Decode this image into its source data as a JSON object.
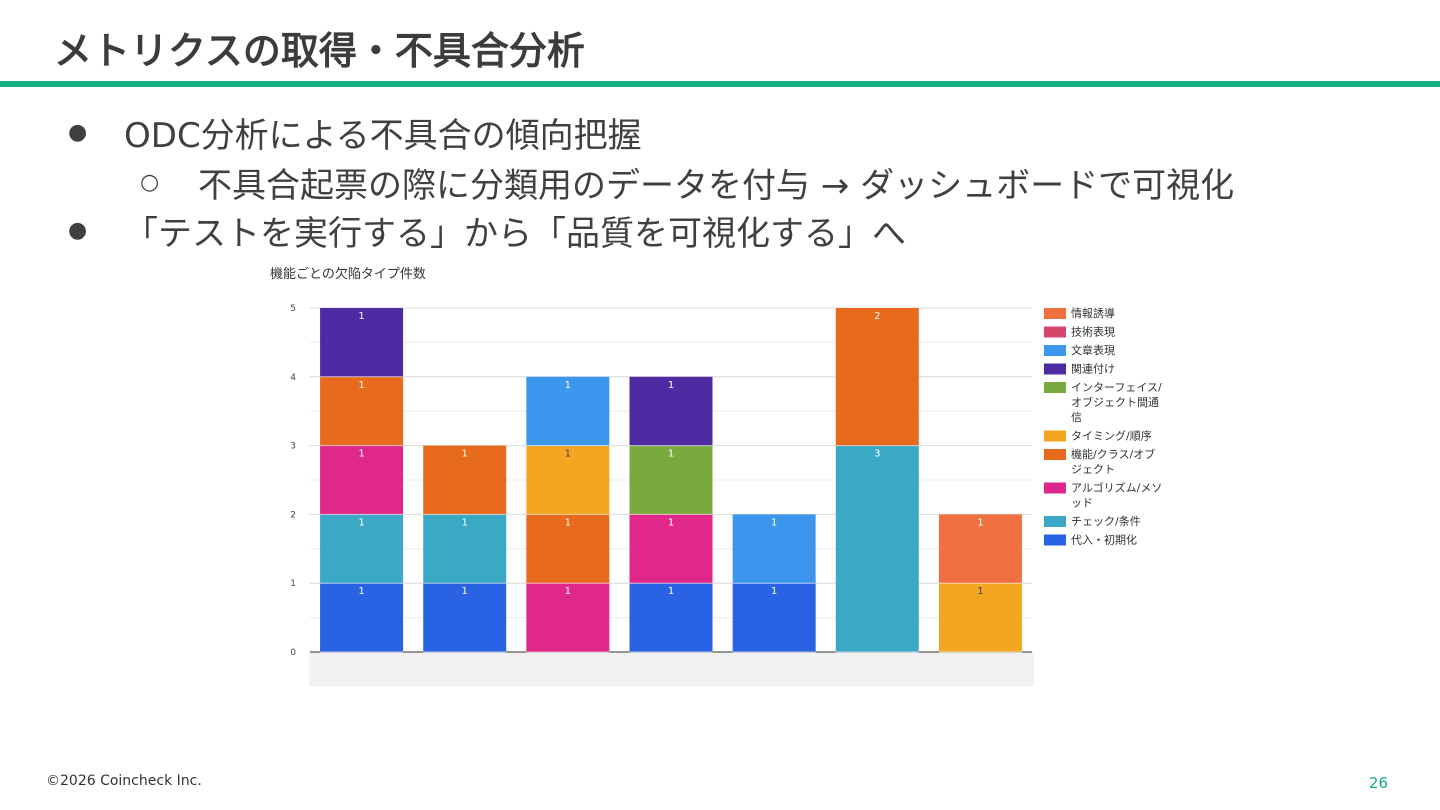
{
  "slide": {
    "title": "メトリクスの取得・不具合分析",
    "accent_color": "#17b085",
    "bullets": [
      {
        "level": 1,
        "marker": "●",
        "text": "ODC分析による不具合の傾向把握"
      },
      {
        "level": 2,
        "marker": "○",
        "text": "不具合起票の際に分類用のデータを付与 → ダッシュボードで可視化"
      },
      {
        "level": 1,
        "marker": "●",
        "text": "「テストを実行する」から「品質を可視化する」へ"
      }
    ],
    "footer": "©2026 Coincheck Inc.",
    "page_number": "26"
  },
  "chart_data": {
    "type": "bar",
    "stacked": true,
    "title": "機能ごとの欠陥タイプ件数",
    "xlabel": "",
    "ylabel": "",
    "ylim": [
      0,
      5
    ],
    "yticks": [
      "0",
      "1",
      "2",
      "3",
      "4",
      "5"
    ],
    "categories": [
      "",
      "",
      "",
      "",
      "",
      "",
      ""
    ],
    "grid": true,
    "legend_position": "right",
    "series": [
      {
        "name": "代入・初期化",
        "color": "#2962e3",
        "values": [
          1,
          1,
          0,
          1,
          1,
          0,
          0
        ]
      },
      {
        "name": "チェック/条件",
        "color": "#3ba8c5",
        "values": [
          1,
          1,
          0,
          0,
          0,
          3,
          0
        ]
      },
      {
        "name": "アルゴリズム/メソッド",
        "color": "#e0288a",
        "values": [
          1,
          0,
          1,
          1,
          0,
          0,
          0
        ]
      },
      {
        "name": "機能/クラス/オブジェクト",
        "color": "#e86b1d",
        "values": [
          1,
          1,
          1,
          0,
          0,
          2,
          0
        ]
      },
      {
        "name": "タイミング/順序",
        "color": "#f4a623",
        "values": [
          0,
          0,
          1,
          0,
          0,
          0,
          1
        ]
      },
      {
        "name": "インターフェイス/オブジェクト間通信",
        "color": "#7aa93f",
        "values": [
          0,
          0,
          0,
          1,
          0,
          0,
          0
        ]
      },
      {
        "name": "関連付け",
        "color": "#4f2ba3",
        "values": [
          1,
          0,
          0,
          1,
          0,
          0,
          0
        ]
      },
      {
        "name": "文章表現",
        "color": "#3d96ee",
        "values": [
          0,
          0,
          1,
          0,
          1,
          0,
          0
        ]
      },
      {
        "name": "技術表現",
        "color": "#d6456b",
        "values": [
          0,
          0,
          0,
          0,
          0,
          0,
          0
        ]
      },
      {
        "name": "情報誘導",
        "color": "#f07042",
        "values": [
          0,
          0,
          0,
          0,
          0,
          0,
          1
        ]
      }
    ],
    "legend_order": [
      "情報誘導",
      "技術表現",
      "文章表現",
      "関連付け",
      "インターフェイス/オブジェクト間通信",
      "タイミング/順序",
      "機能/クラス/オブジェクト",
      "アルゴリズム/メソッド",
      "チェック/条件",
      "代入・初期化"
    ],
    "legend_lines": {
      "インターフェイス/オブジェクト間通信": [
        "インターフェイス/",
        "オブジェクト間通",
        "信"
      ],
      "機能/クラス/オブジェクト": [
        "機能/クラス/オブ",
        "ジェクト"
      ],
      "アルゴリズム/メソッド": [
        "アルゴリズム/メソ",
        "ッド"
      ]
    }
  }
}
